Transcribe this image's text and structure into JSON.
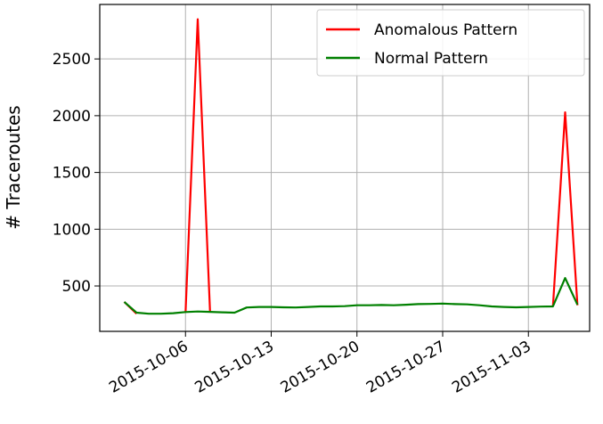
{
  "chart_data": {
    "type": "line",
    "y_label": "# Traceroutes",
    "x": [
      "2015-10-01",
      "2015-10-02",
      "2015-10-03",
      "2015-10-04",
      "2015-10-05",
      "2015-10-06",
      "2015-10-07",
      "2015-10-08",
      "2015-10-09",
      "2015-10-10",
      "2015-10-11",
      "2015-10-12",
      "2015-10-13",
      "2015-10-14",
      "2015-10-15",
      "2015-10-16",
      "2015-10-17",
      "2015-10-18",
      "2015-10-19",
      "2015-10-20",
      "2015-10-21",
      "2015-10-22",
      "2015-10-23",
      "2015-10-24",
      "2015-10-25",
      "2015-10-26",
      "2015-10-27",
      "2015-10-28",
      "2015-10-29",
      "2015-10-30",
      "2015-10-31",
      "2015-11-01",
      "2015-11-02",
      "2015-11-03",
      "2015-11-04",
      "2015-11-05",
      "2015-11-06",
      "2015-11-07"
    ],
    "series": [
      {
        "name": "Anomalous Pattern",
        "color": "#ff0000",
        "values": [
          360,
          255,
          null,
          null,
          null,
          265,
          2850,
          275,
          null,
          null,
          null,
          null,
          null,
          null,
          null,
          null,
          null,
          null,
          null,
          null,
          null,
          null,
          null,
          null,
          null,
          null,
          null,
          null,
          null,
          null,
          null,
          null,
          null,
          null,
          null,
          320,
          2030,
          330
        ]
      },
      {
        "name": "Normal Pattern",
        "color": "#008000",
        "values": [
          360,
          265,
          255,
          255,
          260,
          270,
          275,
          272,
          268,
          265,
          310,
          315,
          315,
          312,
          310,
          315,
          320,
          320,
          322,
          330,
          330,
          332,
          330,
          335,
          340,
          342,
          345,
          340,
          338,
          330,
          320,
          315,
          312,
          315,
          318,
          320,
          570,
          335
        ]
      }
    ],
    "xlim": [
      "2015-09-29",
      "2015-11-08"
    ],
    "xticks": [
      "2015-10-06",
      "2015-10-13",
      "2015-10-20",
      "2015-10-27",
      "2015-11-03"
    ],
    "ylim": [
      100,
      2980
    ],
    "yticks": [
      500,
      1000,
      1500,
      2000,
      2500
    ],
    "grid": true,
    "legend": "upper-right"
  }
}
